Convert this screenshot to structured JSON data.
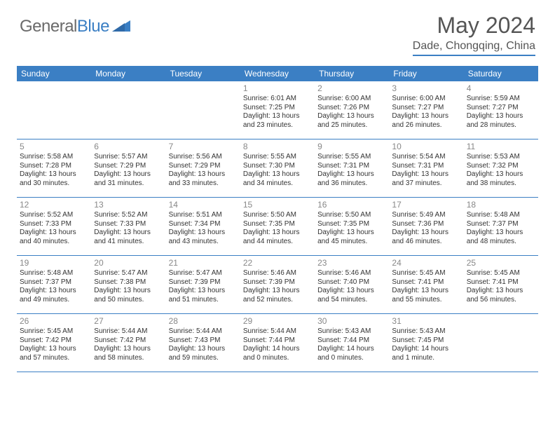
{
  "logo": {
    "textGeneral": "General",
    "textBlue": "Blue"
  },
  "title": "May 2024",
  "location": "Dade, Chongqing, China",
  "colors": {
    "accent": "#3b7fc4",
    "headerText": "#ffffff",
    "bodyText": "#333333",
    "dayNum": "#888888",
    "logoGray": "#6a6a6a",
    "titleGray": "#555555",
    "background": "#ffffff"
  },
  "dayNames": [
    "Sunday",
    "Monday",
    "Tuesday",
    "Wednesday",
    "Thursday",
    "Friday",
    "Saturday"
  ],
  "weeks": [
    [
      {
        "n": "",
        "lines": []
      },
      {
        "n": "",
        "lines": []
      },
      {
        "n": "",
        "lines": []
      },
      {
        "n": "1",
        "lines": [
          "Sunrise: 6:01 AM",
          "Sunset: 7:25 PM",
          "Daylight: 13 hours",
          "and 23 minutes."
        ]
      },
      {
        "n": "2",
        "lines": [
          "Sunrise: 6:00 AM",
          "Sunset: 7:26 PM",
          "Daylight: 13 hours",
          "and 25 minutes."
        ]
      },
      {
        "n": "3",
        "lines": [
          "Sunrise: 6:00 AM",
          "Sunset: 7:27 PM",
          "Daylight: 13 hours",
          "and 26 minutes."
        ]
      },
      {
        "n": "4",
        "lines": [
          "Sunrise: 5:59 AM",
          "Sunset: 7:27 PM",
          "Daylight: 13 hours",
          "and 28 minutes."
        ]
      }
    ],
    [
      {
        "n": "5",
        "lines": [
          "Sunrise: 5:58 AM",
          "Sunset: 7:28 PM",
          "Daylight: 13 hours",
          "and 30 minutes."
        ]
      },
      {
        "n": "6",
        "lines": [
          "Sunrise: 5:57 AM",
          "Sunset: 7:29 PM",
          "Daylight: 13 hours",
          "and 31 minutes."
        ]
      },
      {
        "n": "7",
        "lines": [
          "Sunrise: 5:56 AM",
          "Sunset: 7:29 PM",
          "Daylight: 13 hours",
          "and 33 minutes."
        ]
      },
      {
        "n": "8",
        "lines": [
          "Sunrise: 5:55 AM",
          "Sunset: 7:30 PM",
          "Daylight: 13 hours",
          "and 34 minutes."
        ]
      },
      {
        "n": "9",
        "lines": [
          "Sunrise: 5:55 AM",
          "Sunset: 7:31 PM",
          "Daylight: 13 hours",
          "and 36 minutes."
        ]
      },
      {
        "n": "10",
        "lines": [
          "Sunrise: 5:54 AM",
          "Sunset: 7:31 PM",
          "Daylight: 13 hours",
          "and 37 minutes."
        ]
      },
      {
        "n": "11",
        "lines": [
          "Sunrise: 5:53 AM",
          "Sunset: 7:32 PM",
          "Daylight: 13 hours",
          "and 38 minutes."
        ]
      }
    ],
    [
      {
        "n": "12",
        "lines": [
          "Sunrise: 5:52 AM",
          "Sunset: 7:33 PM",
          "Daylight: 13 hours",
          "and 40 minutes."
        ]
      },
      {
        "n": "13",
        "lines": [
          "Sunrise: 5:52 AM",
          "Sunset: 7:33 PM",
          "Daylight: 13 hours",
          "and 41 minutes."
        ]
      },
      {
        "n": "14",
        "lines": [
          "Sunrise: 5:51 AM",
          "Sunset: 7:34 PM",
          "Daylight: 13 hours",
          "and 43 minutes."
        ]
      },
      {
        "n": "15",
        "lines": [
          "Sunrise: 5:50 AM",
          "Sunset: 7:35 PM",
          "Daylight: 13 hours",
          "and 44 minutes."
        ]
      },
      {
        "n": "16",
        "lines": [
          "Sunrise: 5:50 AM",
          "Sunset: 7:35 PM",
          "Daylight: 13 hours",
          "and 45 minutes."
        ]
      },
      {
        "n": "17",
        "lines": [
          "Sunrise: 5:49 AM",
          "Sunset: 7:36 PM",
          "Daylight: 13 hours",
          "and 46 minutes."
        ]
      },
      {
        "n": "18",
        "lines": [
          "Sunrise: 5:48 AM",
          "Sunset: 7:37 PM",
          "Daylight: 13 hours",
          "and 48 minutes."
        ]
      }
    ],
    [
      {
        "n": "19",
        "lines": [
          "Sunrise: 5:48 AM",
          "Sunset: 7:37 PM",
          "Daylight: 13 hours",
          "and 49 minutes."
        ]
      },
      {
        "n": "20",
        "lines": [
          "Sunrise: 5:47 AM",
          "Sunset: 7:38 PM",
          "Daylight: 13 hours",
          "and 50 minutes."
        ]
      },
      {
        "n": "21",
        "lines": [
          "Sunrise: 5:47 AM",
          "Sunset: 7:39 PM",
          "Daylight: 13 hours",
          "and 51 minutes."
        ]
      },
      {
        "n": "22",
        "lines": [
          "Sunrise: 5:46 AM",
          "Sunset: 7:39 PM",
          "Daylight: 13 hours",
          "and 52 minutes."
        ]
      },
      {
        "n": "23",
        "lines": [
          "Sunrise: 5:46 AM",
          "Sunset: 7:40 PM",
          "Daylight: 13 hours",
          "and 54 minutes."
        ]
      },
      {
        "n": "24",
        "lines": [
          "Sunrise: 5:45 AM",
          "Sunset: 7:41 PM",
          "Daylight: 13 hours",
          "and 55 minutes."
        ]
      },
      {
        "n": "25",
        "lines": [
          "Sunrise: 5:45 AM",
          "Sunset: 7:41 PM",
          "Daylight: 13 hours",
          "and 56 minutes."
        ]
      }
    ],
    [
      {
        "n": "26",
        "lines": [
          "Sunrise: 5:45 AM",
          "Sunset: 7:42 PM",
          "Daylight: 13 hours",
          "and 57 minutes."
        ]
      },
      {
        "n": "27",
        "lines": [
          "Sunrise: 5:44 AM",
          "Sunset: 7:42 PM",
          "Daylight: 13 hours",
          "and 58 minutes."
        ]
      },
      {
        "n": "28",
        "lines": [
          "Sunrise: 5:44 AM",
          "Sunset: 7:43 PM",
          "Daylight: 13 hours",
          "and 59 minutes."
        ]
      },
      {
        "n": "29",
        "lines": [
          "Sunrise: 5:44 AM",
          "Sunset: 7:44 PM",
          "Daylight: 14 hours",
          "and 0 minutes."
        ]
      },
      {
        "n": "30",
        "lines": [
          "Sunrise: 5:43 AM",
          "Sunset: 7:44 PM",
          "Daylight: 14 hours",
          "and 0 minutes."
        ]
      },
      {
        "n": "31",
        "lines": [
          "Sunrise: 5:43 AM",
          "Sunset: 7:45 PM",
          "Daylight: 14 hours",
          "and 1 minute."
        ]
      },
      {
        "n": "",
        "lines": []
      }
    ]
  ]
}
